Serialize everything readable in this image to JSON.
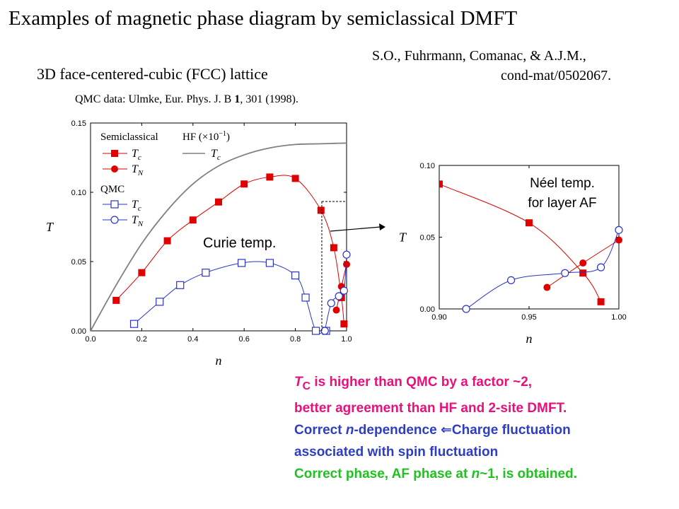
{
  "slide": {
    "title": "Examples of magnetic phase diagram by semiclassical  DMFT",
    "reference_line1": "S.O., Fuhrmann, Comanac, & A.J.M.,",
    "reference_line2": "cond-mat/0502067.",
    "lattice": "3D face-centered-cubic (FCC) lattice",
    "qmc_prefix": "QMC data: Ulmke, Eur. Phys. J. B ",
    "qmc_volume": "1",
    "qmc_suffix": ", 301 (1998)."
  },
  "annotations": {
    "curie": "Curie temp.",
    "neel_line1": "Néel temp.",
    "neel_line2": "for layer AF"
  },
  "legend": {
    "semiclassical": "Semiclassical",
    "hf": "HF (×10",
    "hf_exp": "−1",
    "hf_close": ")",
    "qmc": "QMC",
    "sym_T": "T",
    "sub_c": "c",
    "sub_N": "N"
  },
  "colors": {
    "semiclassical": "#e00000",
    "qmc": "#2a34c8",
    "hf": "#808080",
    "axis": "#000000"
  },
  "conclusions": {
    "line1_sym": "T",
    "line1_sub": "C",
    "line1_rest": " is higher than QMC by a factor ~2,",
    "line2": "better agreement than HF and 2-site DMFT.",
    "line3_a": "Correct ",
    "line3_n": "n",
    "line3_b": "-dependence ",
    "line3_arrow": "⇐",
    "line3_c": "Charge fluctuation",
    "line4": "associated with spin fluctuation",
    "line5_a": "Correct phase, AF phase at ",
    "line5_n": "n",
    "line5_b": "~1, is obtained."
  },
  "chart_data": [
    {
      "type": "scatter",
      "title": "",
      "xlabel": "n",
      "ylabel": "T",
      "xlim": [
        0.0,
        1.0
      ],
      "ylim": [
        0.0,
        0.15
      ],
      "xticks": [
        "0.0",
        "0.2",
        "0.4",
        "0.6",
        "0.8",
        "1.0"
      ],
      "yticks": [
        "0.00",
        "0.05",
        "0.10",
        "0.15"
      ],
      "series": [
        {
          "name": "Semiclassical Tc",
          "marker": "square-filled",
          "color": "#e00000",
          "x": [
            0.1,
            0.2,
            0.3,
            0.4,
            0.5,
            0.6,
            0.7,
            0.8,
            0.9,
            0.95,
            0.98,
            0.99
          ],
          "y": [
            0.022,
            0.042,
            0.065,
            0.08,
            0.093,
            0.106,
            0.111,
            0.11,
            0.087,
            0.06,
            0.024,
            0.005
          ]
        },
        {
          "name": "Semiclassical TN",
          "marker": "circle-filled",
          "color": "#e00000",
          "x": [
            0.96,
            0.98,
            1.0
          ],
          "y": [
            0.015,
            0.032,
            0.048
          ]
        },
        {
          "name": "QMC Tc",
          "marker": "square-open",
          "color": "#2a34c8",
          "x": [
            0.17,
            0.27,
            0.35,
            0.45,
            0.59,
            0.7,
            0.8,
            0.84,
            0.88,
            0.92
          ],
          "y": [
            0.005,
            0.021,
            0.033,
            0.042,
            0.049,
            0.049,
            0.04,
            0.024,
            0.0,
            0.0
          ]
        },
        {
          "name": "QMC TN",
          "marker": "circle-open",
          "color": "#2a34c8",
          "x": [
            0.915,
            0.94,
            0.97,
            0.99,
            1.0
          ],
          "y": [
            0.0,
            0.02,
            0.025,
            0.029,
            0.055
          ]
        },
        {
          "name": "HF Tc (x10^-1)",
          "marker": "line",
          "color": "#808080",
          "x": [
            0.0,
            0.1,
            0.2,
            0.3,
            0.4,
            0.5,
            0.6,
            0.7,
            0.8,
            0.9,
            0.95,
            1.0
          ],
          "y": [
            0.0,
            0.033,
            0.063,
            0.087,
            0.106,
            0.119,
            0.127,
            0.132,
            0.1345,
            0.135,
            0.1353,
            0.1355
          ]
        }
      ]
    },
    {
      "type": "scatter",
      "title": "",
      "xlabel": "n",
      "ylabel": "T",
      "xlim": [
        0.9,
        1.0
      ],
      "ylim": [
        0.0,
        0.1
      ],
      "xticks": [
        "0.90",
        "0.95",
        "1.00"
      ],
      "yticks": [
        "0.00",
        "0.05",
        "0.10"
      ],
      "series": [
        {
          "name": "Semiclassical Tc",
          "marker": "square-filled",
          "color": "#e00000",
          "x": [
            0.9,
            0.95,
            0.98,
            0.99
          ],
          "y": [
            0.087,
            0.06,
            0.025,
            0.005
          ]
        },
        {
          "name": "Semiclassical TN",
          "marker": "circle-filled",
          "color": "#e00000",
          "x": [
            0.96,
            0.98,
            1.0
          ],
          "y": [
            0.015,
            0.032,
            0.048
          ]
        },
        {
          "name": "QMC TN",
          "marker": "circle-open",
          "color": "#2a34c8",
          "x": [
            0.915,
            0.94,
            0.97,
            0.99,
            1.0
          ],
          "y": [
            0.0,
            0.02,
            0.025,
            0.029,
            0.055
          ]
        }
      ]
    }
  ]
}
